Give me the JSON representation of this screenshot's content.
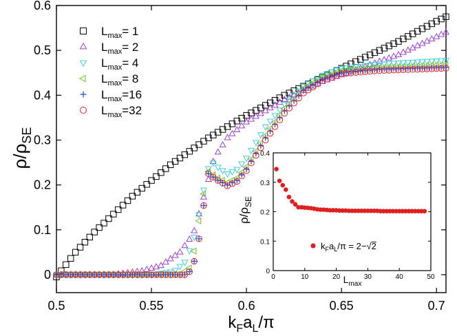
{
  "chart_data": [
    {
      "type": "scatter",
      "role": "main",
      "title": "",
      "xlabel": {
        "base": "k",
        "sub1": "F",
        "mid": "a",
        "sub2": "L",
        "tail": "/π"
      },
      "ylabel": {
        "base": "ρ/ρ",
        "sub": "SE"
      },
      "xlim": [
        0.5,
        0.705
      ],
      "ylim": [
        -0.04,
        0.6
      ],
      "xticks": [
        0.5,
        0.55,
        0.6,
        0.65,
        0.7
      ],
      "xtick_labels": [
        "0.5",
        "0.55",
        "0.6",
        "0.65",
        "0.7"
      ],
      "yticks": [
        0,
        0.1,
        0.2,
        0.3,
        0.4,
        0.5,
        0.6
      ],
      "ytick_labels": [
        "0",
        "0.1",
        "0.2",
        "0.3",
        "0.4",
        "0.5",
        "0.6"
      ],
      "legend_position": "top-left",
      "series": [
        {
          "name": "L_max = 1",
          "legend": {
            "base": "L",
            "sub": "max",
            "suffix": "= 1"
          },
          "marker": "square",
          "color": "#000000",
          "x_range": [
            0.5,
            0.705,
            0.0025
          ],
          "keypoints": [
            [
              0.5,
              -0.005
            ],
            [
              0.51,
              0.05
            ],
            [
              0.52,
              0.095
            ],
            [
              0.54,
              0.175
            ],
            [
              0.56,
              0.245
            ],
            [
              0.58,
              0.305
            ],
            [
              0.6,
              0.355
            ],
            [
              0.62,
              0.4
            ],
            [
              0.64,
              0.44
            ],
            [
              0.66,
              0.48
            ],
            [
              0.68,
              0.52
            ],
            [
              0.7,
              0.565
            ],
            [
              0.705,
              0.575
            ]
          ]
        },
        {
          "name": "L_max = 2",
          "legend": {
            "base": "L",
            "sub": "max",
            "suffix": "= 2"
          },
          "marker": "triangle-up",
          "color": "#a040d0",
          "x_range": [
            0.5,
            0.705,
            0.0025
          ],
          "keypoints": [
            [
              0.5,
              0.0
            ],
            [
              0.53,
              0.0
            ],
            [
              0.545,
              0.008
            ],
            [
              0.555,
              0.02
            ],
            [
              0.565,
              0.05
            ],
            [
              0.572,
              0.09
            ],
            [
              0.578,
              0.18
            ],
            [
              0.583,
              0.26
            ],
            [
              0.59,
              0.305
            ],
            [
              0.6,
              0.34
            ],
            [
              0.62,
              0.39
            ],
            [
              0.64,
              0.43
            ],
            [
              0.66,
              0.46
            ],
            [
              0.68,
              0.49
            ],
            [
              0.7,
              0.53
            ],
            [
              0.705,
              0.54
            ]
          ]
        },
        {
          "name": "L_max = 4",
          "legend": {
            "base": "L",
            "sub": "max",
            "suffix": "= 4"
          },
          "marker": "triangle-down",
          "color": "#40d0e0",
          "x_range": [
            0.5,
            0.705,
            0.0025
          ],
          "keypoints": [
            [
              0.5,
              0.0
            ],
            [
              0.55,
              0.0
            ],
            [
              0.562,
              0.008
            ],
            [
              0.568,
              0.03
            ],
            [
              0.573,
              0.09
            ],
            [
              0.578,
              0.2
            ],
            [
              0.581,
              0.255
            ],
            [
              0.585,
              0.24
            ],
            [
              0.59,
              0.225
            ],
            [
              0.595,
              0.235
            ],
            [
              0.6,
              0.26
            ],
            [
              0.61,
              0.33
            ],
            [
              0.62,
              0.38
            ],
            [
              0.63,
              0.42
            ],
            [
              0.64,
              0.445
            ],
            [
              0.65,
              0.46
            ],
            [
              0.67,
              0.47
            ],
            [
              0.705,
              0.478
            ]
          ]
        },
        {
          "name": "L_max = 8",
          "legend": {
            "base": "L",
            "sub": "max",
            "suffix": "= 8"
          },
          "marker": "triangle-left",
          "color": "#70c020",
          "x_range": [
            0.5,
            0.705,
            0.0025
          ],
          "keypoints": [
            [
              0.5,
              0.0
            ],
            [
              0.565,
              0.0
            ],
            [
              0.57,
              0.015
            ],
            [
              0.573,
              0.06
            ],
            [
              0.576,
              0.15
            ],
            [
              0.58,
              0.23
            ],
            [
              0.585,
              0.215
            ],
            [
              0.59,
              0.205
            ],
            [
              0.595,
              0.215
            ],
            [
              0.6,
              0.24
            ],
            [
              0.61,
              0.31
            ],
            [
              0.62,
              0.37
            ],
            [
              0.63,
              0.415
            ],
            [
              0.64,
              0.44
            ],
            [
              0.65,
              0.455
            ],
            [
              0.67,
              0.462
            ],
            [
              0.705,
              0.468
            ]
          ]
        },
        {
          "name": "L_max = 16",
          "legend": {
            "base": "L",
            "sub": "max",
            "suffix": "=16"
          },
          "marker": "plus",
          "color": "#2040e0",
          "x_range": [
            0.5,
            0.705,
            0.0025
          ],
          "keypoints": [
            [
              0.5,
              0.0
            ],
            [
              0.568,
              0.0
            ],
            [
              0.571,
              0.01
            ],
            [
              0.574,
              0.05
            ],
            [
              0.577,
              0.14
            ],
            [
              0.58,
              0.225
            ],
            [
              0.585,
              0.21
            ],
            [
              0.59,
              0.2
            ],
            [
              0.595,
              0.21
            ],
            [
              0.6,
              0.235
            ],
            [
              0.61,
              0.305
            ],
            [
              0.62,
              0.365
            ],
            [
              0.63,
              0.41
            ],
            [
              0.64,
              0.435
            ],
            [
              0.65,
              0.45
            ],
            [
              0.67,
              0.458
            ],
            [
              0.705,
              0.462
            ]
          ]
        },
        {
          "name": "L_max = 32",
          "legend": {
            "base": "L",
            "sub": "max",
            "suffix": "=32"
          },
          "marker": "circle",
          "color": "#e02020",
          "x_range": [
            0.5,
            0.705,
            0.0025
          ],
          "keypoints": [
            [
              0.5,
              0.0
            ],
            [
              0.568,
              0.0
            ],
            [
              0.571,
              0.01
            ],
            [
              0.574,
              0.05
            ],
            [
              0.577,
              0.14
            ],
            [
              0.58,
              0.225
            ],
            [
              0.585,
              0.21
            ],
            [
              0.59,
              0.198
            ],
            [
              0.595,
              0.208
            ],
            [
              0.6,
              0.232
            ],
            [
              0.61,
              0.3
            ],
            [
              0.62,
              0.36
            ],
            [
              0.63,
              0.405
            ],
            [
              0.64,
              0.432
            ],
            [
              0.65,
              0.448
            ],
            [
              0.67,
              0.455
            ],
            [
              0.705,
              0.46
            ]
          ]
        }
      ]
    },
    {
      "type": "scatter",
      "role": "inset",
      "xlabel": {
        "base": "L",
        "sub": "max"
      },
      "ylabel": {
        "base": "ρ/ρ",
        "sub": "SE"
      },
      "xlim": [
        0,
        50
      ],
      "ylim": [
        0,
        0.4
      ],
      "xticks": [
        0,
        10,
        20,
        30,
        40,
        50
      ],
      "xtick_labels": [
        "0",
        "10",
        "20",
        "30",
        "40",
        "50"
      ],
      "yticks": [
        0,
        0.1,
        0.2,
        0.3,
        0.4
      ],
      "ytick_labels": [
        "0",
        "0.1",
        "0.2",
        "0.3",
        "0.4"
      ],
      "legend_position": "bottom-right",
      "series": [
        {
          "name": "k_F a_L/π = 2−√2",
          "legend": {
            "p1": "k",
            "s1": "F",
            "p2": "a",
            "s2": "L",
            "p3": "/π = 2−",
            "root": "2"
          },
          "marker": "filled-circle",
          "color": "#e02020",
          "x": [
            1,
            2,
            3,
            4,
            5,
            6,
            7,
            8,
            9,
            10,
            11,
            12,
            13,
            14,
            15,
            16,
            17,
            18,
            19,
            20,
            21,
            22,
            23,
            24,
            25,
            26,
            27,
            28,
            29,
            30,
            31,
            32,
            33,
            34,
            35,
            36,
            37,
            38,
            39,
            40,
            41,
            42,
            43,
            44,
            45,
            46,
            47,
            48
          ],
          "y": [
            0.345,
            0.305,
            0.29,
            0.275,
            0.25,
            0.235,
            0.225,
            0.215,
            0.215,
            0.214,
            0.213,
            0.212,
            0.21,
            0.208,
            0.207,
            0.207,
            0.206,
            0.205,
            0.205,
            0.205,
            0.204,
            0.204,
            0.204,
            0.203,
            0.203,
            0.203,
            0.203,
            0.203,
            0.203,
            0.203,
            0.203,
            0.203,
            0.203,
            0.202,
            0.202,
            0.202,
            0.202,
            0.202,
            0.202,
            0.202,
            0.202,
            0.202,
            0.202,
            0.202,
            0.202,
            0.202,
            0.202,
            0.202
          ]
        }
      ]
    }
  ]
}
